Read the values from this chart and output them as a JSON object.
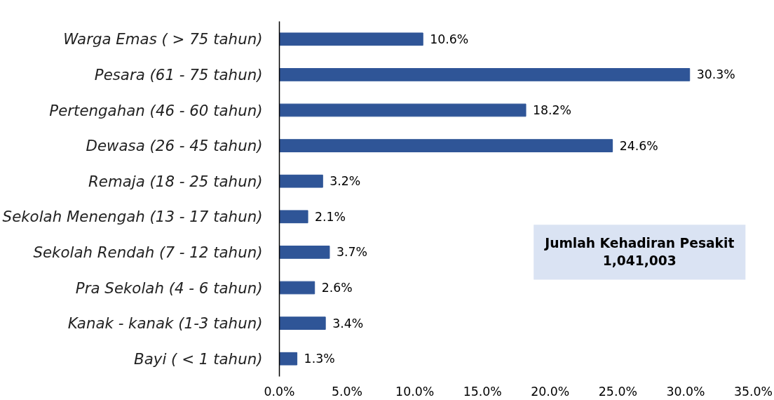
{
  "chart_data": {
    "type": "bar",
    "orientation": "horizontal",
    "categories": [
      "Warga Emas ( > 75 tahun)",
      "Pesara (61 - 75 tahun)",
      "Pertengahan (46 - 60 tahun)",
      "Dewasa (26 - 45 tahun)",
      "Remaja (18 - 25 tahun)",
      "Sekolah Menengah (13 - 17 tahun)",
      "Sekolah Rendah (7 - 12 tahun)",
      "Pra Sekolah (4 - 6 tahun)",
      "Kanak - kanak (1-3 tahun)",
      "Bayi ( < 1 tahun)"
    ],
    "values": [
      10.6,
      30.3,
      18.2,
      24.6,
      3.2,
      2.1,
      3.7,
      2.6,
      3.4,
      1.3
    ],
    "value_labels": [
      "10.6%",
      "30.3%",
      "18.2%",
      "24.6%",
      "3.2%",
      "2.1%",
      "3.7%",
      "2.6%",
      "3.4%",
      "1.3%"
    ],
    "color": "#2f5597",
    "xlim": [
      0,
      35
    ],
    "xticks": [
      {
        "value": 0,
        "label": "0.0%"
      },
      {
        "value": 5,
        "label": "5.0%"
      },
      {
        "value": 10,
        "label": "10.0%"
      },
      {
        "value": 15,
        "label": "15.0%"
      },
      {
        "value": 20,
        "label": "20.0%"
      },
      {
        "value": 25,
        "label": "25.0%"
      },
      {
        "value": 30,
        "label": "30.0%"
      },
      {
        "value": 35,
        "label": "35.0%"
      }
    ],
    "grid": false,
    "annotations": [
      "Jumlah Kehadiran Pesakit\n1,041,003"
    ]
  }
}
